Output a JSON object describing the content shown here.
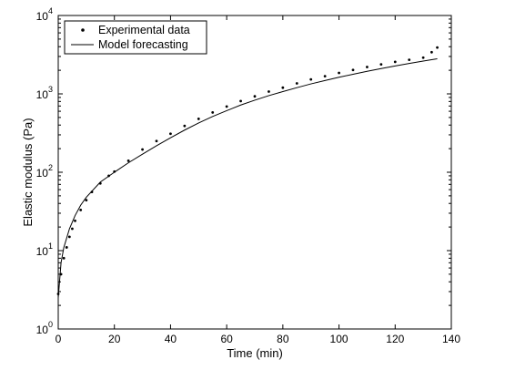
{
  "chart_data": {
    "type": "scatter",
    "title": "",
    "xlabel": "Time (min)",
    "ylabel": "Elastic modulus (Pa)",
    "xlim": [
      0,
      140
    ],
    "ylim": [
      1,
      10000
    ],
    "y_scale": "log",
    "grid": false,
    "legend_position": "top-left",
    "x_ticks": [
      0,
      20,
      40,
      60,
      80,
      100,
      120,
      140
    ],
    "y_ticks": [
      {
        "value": 1,
        "base": "10",
        "exp": "0"
      },
      {
        "value": 10,
        "base": "10",
        "exp": "1"
      },
      {
        "value": 100,
        "base": "10",
        "exp": "2"
      },
      {
        "value": 1000,
        "base": "10",
        "exp": "3"
      },
      {
        "value": 10000,
        "base": "10",
        "exp": "4"
      }
    ],
    "series": [
      {
        "name": "Experimental data",
        "style": "points",
        "color": "#000000",
        "x": [
          0,
          1,
          2,
          3,
          4,
          5,
          6,
          8,
          10,
          12,
          15,
          18,
          20,
          25,
          30,
          35,
          40,
          45,
          50,
          55,
          60,
          65,
          70,
          75,
          80,
          85,
          90,
          95,
          100,
          105,
          110,
          115,
          120,
          125,
          130,
          133,
          135
        ],
        "y": [
          2.8,
          5,
          8,
          11,
          15,
          19,
          24,
          33,
          44,
          56,
          72,
          90,
          102,
          140,
          195,
          250,
          310,
          390,
          480,
          580,
          690,
          810,
          930,
          1070,
          1200,
          1360,
          1530,
          1680,
          1850,
          2020,
          2200,
          2380,
          2560,
          2720,
          2900,
          3400,
          3900
        ]
      },
      {
        "name": "Model forecasting",
        "style": "line",
        "color": "#000000",
        "x": [
          0,
          1,
          2,
          4,
          6,
          8,
          10,
          15,
          20,
          25,
          30,
          35,
          40,
          45,
          50,
          55,
          60,
          65,
          70,
          75,
          80,
          85,
          90,
          95,
          100,
          105,
          110,
          115,
          120,
          125,
          130,
          135
        ],
        "y": [
          2.5,
          7,
          11,
          19,
          28,
          38,
          48,
          75,
          100,
          132,
          170,
          218,
          275,
          345,
          425,
          515,
          610,
          720,
          830,
          950,
          1070,
          1200,
          1340,
          1480,
          1630,
          1780,
          1940,
          2100,
          2270,
          2440,
          2620,
          2800
        ]
      }
    ]
  }
}
